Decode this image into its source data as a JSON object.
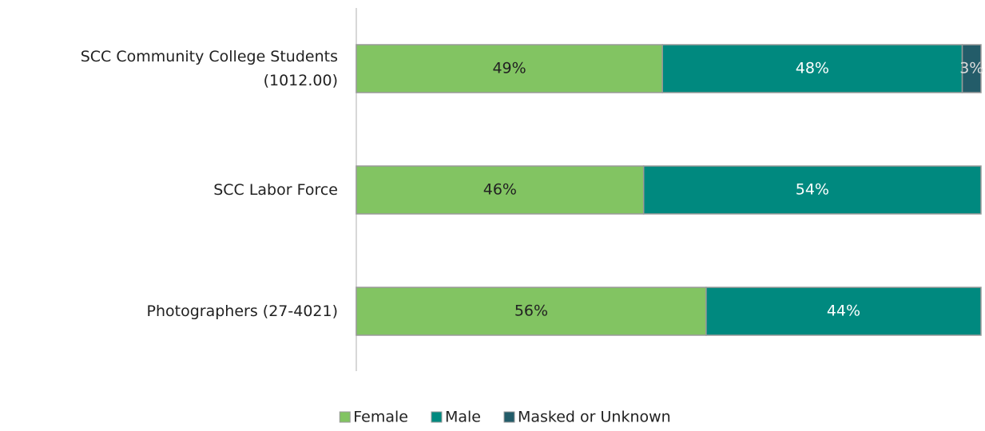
{
  "chart_data": {
    "type": "stacked-bar-horizontal",
    "categories": [
      "SCC Community College Students\n(1012.00)",
      "SCC Labor Force",
      "Photographers (27-4021)"
    ],
    "series": [
      {
        "name": "Female",
        "color": "#82c462",
        "values": [
          49,
          46,
          56
        ],
        "value_labels": [
          "49%",
          "46%",
          "56%"
        ]
      },
      {
        "name": "Male",
        "color": "#00897f",
        "values": [
          48,
          54,
          44
        ],
        "value_labels": [
          "48%",
          "54%",
          "44%"
        ]
      },
      {
        "name": "Masked or Unknown",
        "color": "#235c69",
        "values": [
          3,
          null,
          null
        ],
        "value_labels": [
          "3%",
          null,
          null
        ]
      }
    ],
    "xlim": [
      0,
      100
    ],
    "legend": "bottom"
  }
}
